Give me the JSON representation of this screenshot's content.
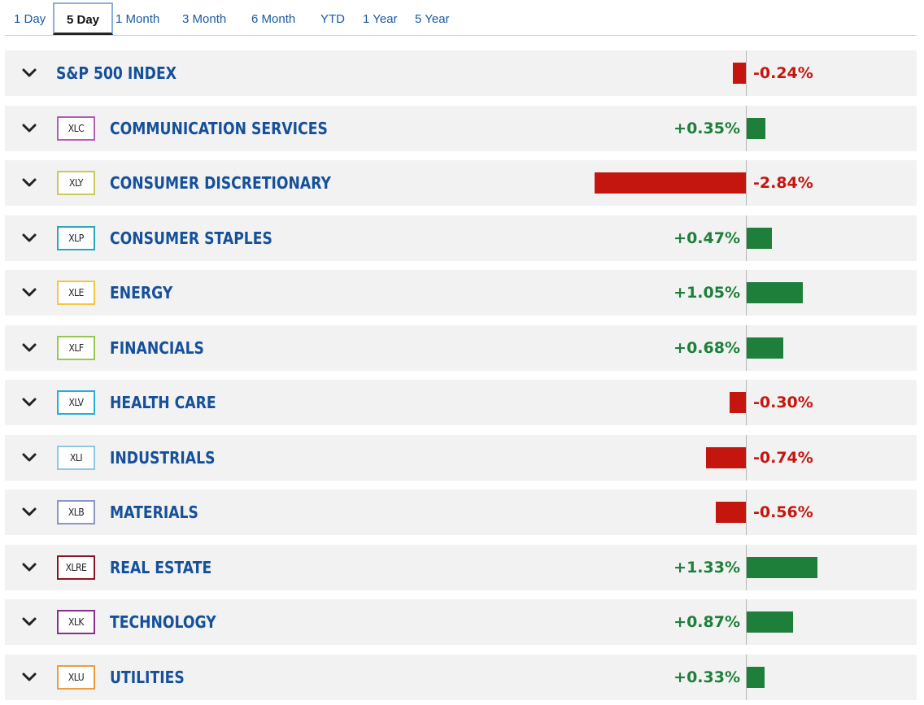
{
  "colors": {
    "positive": "#1e7f3a",
    "negative": "#c4160f",
    "link": "#16509b"
  },
  "tabs": [
    "1 Day",
    "5 Day",
    "1 Month",
    "3 Month",
    "6 Month",
    "YTD",
    "1 Year",
    "5 Year"
  ],
  "active_tab": "5 Day",
  "index": {
    "name": "S&P 500 INDEX",
    "change": -0.24,
    "change_label": "-0.24%"
  },
  "sectors": [
    {
      "ticker": "XLC",
      "name": "COMMUNICATION SERVICES",
      "change": 0.35,
      "change_label": "+0.35%",
      "badge_color": "#b15fb5"
    },
    {
      "ticker": "XLY",
      "name": "CONSUMER DISCRETIONARY",
      "change": -2.84,
      "change_label": "-2.84%",
      "badge_color": "#c9c95a"
    },
    {
      "ticker": "XLP",
      "name": "CONSUMER STAPLES",
      "change": 0.47,
      "change_label": "+0.47%",
      "badge_color": "#2aa7b8"
    },
    {
      "ticker": "XLE",
      "name": "ENERGY",
      "change": 1.05,
      "change_label": "+1.05%",
      "badge_color": "#f2c83c"
    },
    {
      "ticker": "XLF",
      "name": "FINANCIALS",
      "change": 0.68,
      "change_label": "+0.68%",
      "badge_color": "#95c94f"
    },
    {
      "ticker": "XLV",
      "name": "HEALTH CARE",
      "change": -0.3,
      "change_label": "-0.30%",
      "badge_color": "#22aee0"
    },
    {
      "ticker": "XLI",
      "name": "INDUSTRIALS",
      "change": -0.74,
      "change_label": "-0.74%",
      "badge_color": "#8fc8e3"
    },
    {
      "ticker": "XLB",
      "name": "MATERIALS",
      "change": -0.56,
      "change_label": "-0.56%",
      "badge_color": "#8c96c8"
    },
    {
      "ticker": "XLRE",
      "name": "REAL ESTATE",
      "change": 1.33,
      "change_label": "+1.33%",
      "badge_color": "#8b1526"
    },
    {
      "ticker": "XLK",
      "name": "TECHNOLOGY",
      "change": 0.87,
      "change_label": "+0.87%",
      "badge_color": "#8a2e8e"
    },
    {
      "ticker": "XLU",
      "name": "UTILITIES",
      "change": 0.33,
      "change_label": "+0.33%",
      "badge_color": "#f29a3a"
    }
  ]
}
